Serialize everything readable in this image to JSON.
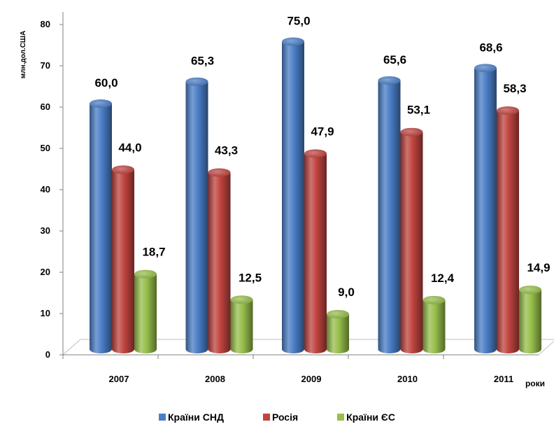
{
  "chart_data": {
    "type": "bar",
    "categories": [
      "2007",
      "2008",
      "2009",
      "2010",
      "2011"
    ],
    "series": [
      {
        "name": "Країни СНД",
        "values": [
          60.0,
          65.3,
          75.0,
          65.6,
          68.6
        ],
        "labels": [
          "60,0",
          "65,3",
          "75,0",
          "65,6",
          "68,6"
        ],
        "color": "#4a7ec6"
      },
      {
        "name": "Росія",
        "values": [
          44.0,
          43.3,
          47.9,
          53.1,
          58.3
        ],
        "labels": [
          "44,0",
          "43,3",
          "47,9",
          "53,1",
          "58,3"
        ],
        "color": "#c0443f"
      },
      {
        "name": "Країни ЄС",
        "values": [
          18.7,
          12.5,
          9.0,
          12.4,
          14.9
        ],
        "labels": [
          "18,7",
          "12,5",
          "9,0",
          "12,4",
          "14,9"
        ],
        "color": "#97bf4b"
      }
    ],
    "yticks": [
      "0",
      "10",
      "20",
      "30",
      "40",
      "50",
      "60",
      "70",
      "80"
    ],
    "ylim": [
      0,
      80
    ],
    "ylabel": "млн.дол.США",
    "xlabel": "роки",
    "title": "",
    "legend_position": "bottom",
    "style": "3d-cylinder",
    "grid": false
  }
}
